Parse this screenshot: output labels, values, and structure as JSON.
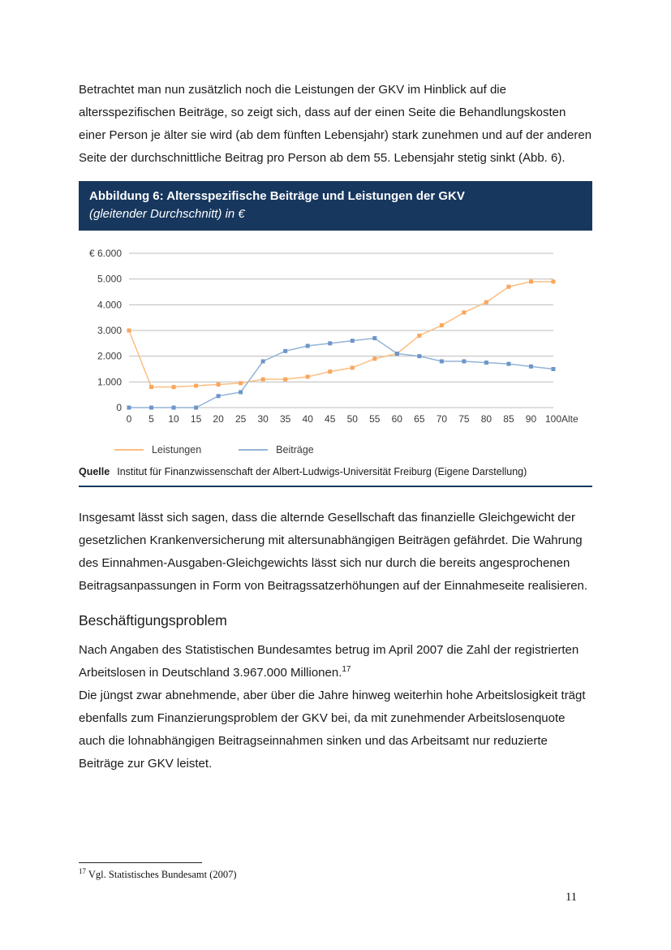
{
  "page": {
    "number": "11"
  },
  "paragraphs": {
    "p1": "Betrachtet man nun zusätzlich noch die Leistungen der GKV im Hinblick auf die altersspezifischen Beiträge, so zeigt sich, dass auf der einen Seite die Behandlungskosten einer Person je älter sie wird (ab dem fünften Lebensjahr) stark zunehmen und auf der anderen Seite der durchschnittliche Beitrag pro Person ab dem 55. Lebensjahr stetig sinkt (Abb. 6).",
    "p2": "Insgesamt lässt sich sagen, dass die alternde Gesellschaft das finanzielle Gleichgewicht der gesetzlichen Krankenversicherung mit altersunabhängigen Beiträgen gefährdet. Die Wahrung des Einnahmen-Ausgaben-Gleichgewichts lässt sich nur durch die bereits angesprochenen Beitragsanpassungen in Form von Beitragssatzerhöhungen auf der Einnahmeseite realisieren.",
    "p3_text": "Nach Angaben des Statistischen Bundesamtes betrug im April 2007 die Zahl der registrierten Arbeitslosen in Deutschland 3.967.000 Millionen.",
    "p3_footnote_ref": "17",
    "p4": "Die jüngst zwar abnehmende, aber über die Jahre hinweg weiterhin hohe Arbeitslosigkeit trägt ebenfalls zum Finanzierungsproblem der GKV bei, da mit zunehmender Arbeitslosenquote auch die lohnabhängigen Beitragseinnahmen sinken und das Arbeitsamt nur reduzierte Beiträge zur GKV leistet."
  },
  "section_heading": "Beschäftigungsproblem",
  "figure": {
    "title": "Abbildung 6: Altersspezifische Beiträge und Leistungen der GKV",
    "subtitle": "(gleitender Durchschnitt) in €",
    "source_label": "Quelle",
    "source_text": "Institut für Finanzwissenschaft der Albert-Ludwigs-Universität Freiburg (Eigene Darstellung)",
    "title_bar_color": "#17375E"
  },
  "footnote": {
    "ref": "17",
    "text": "Vgl. Statistisches Bundesamt (2007)"
  },
  "chart_data": {
    "type": "line",
    "title": "Abbildung 6: Altersspezifische Beiträge und Leistungen der GKV (gleitender Durchschnitt) in €",
    "categories": [
      0,
      5,
      10,
      15,
      20,
      25,
      30,
      35,
      40,
      45,
      50,
      55,
      60,
      65,
      70,
      75,
      80,
      85,
      90,
      100
    ],
    "x_axis_label": "Alte",
    "ylim": [
      0,
      6000
    ],
    "y_tick_labels": [
      "0",
      "1.000",
      "2.000",
      "3.000",
      "4.000",
      "5.000",
      "€ 6.000"
    ],
    "grid": true,
    "legend_position": "bottom-left",
    "series": [
      {
        "name": "Leistungen",
        "color": "#FBBE82",
        "marker_color": "#F9A65F",
        "values": [
          3000,
          800,
          800,
          850,
          900,
          950,
          1100,
          1100,
          1200,
          1400,
          1550,
          1900,
          2100,
          2800,
          3200,
          3700,
          4100,
          4700,
          4900,
          4900
        ]
      },
      {
        "name": "Beiträge",
        "color": "#95B3D7",
        "marker_color": "#6C96C8",
        "values": [
          0,
          0,
          0,
          0,
          450,
          600,
          1800,
          2200,
          2400,
          2500,
          2600,
          2700,
          2100,
          2000,
          1800,
          1800,
          1750,
          1700,
          1600,
          1500
        ]
      }
    ]
  }
}
